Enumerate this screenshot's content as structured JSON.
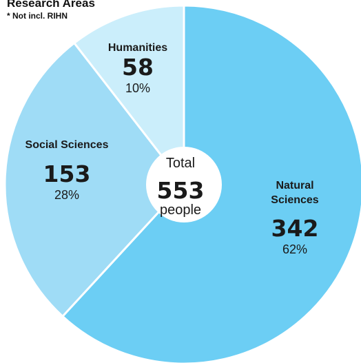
{
  "chart_data": {
    "type": "pie",
    "title": "Research Areas",
    "note": "* Not incl. RIHN",
    "center": {
      "label": "Total",
      "value": "553",
      "unit": "people"
    },
    "slices": [
      {
        "name": "Natural Sciences",
        "name_lines": [
          "Natural",
          "Sciences"
        ],
        "value": 342,
        "value_label": "342",
        "percent_label": "62%",
        "color": "#6ccef4"
      },
      {
        "name": "Social Sciences",
        "name_lines": [
          "Social Sciences"
        ],
        "value": 153,
        "value_label": "153",
        "percent_label": "28%",
        "color": "#9fdcf6"
      },
      {
        "name": "Humanities",
        "name_lines": [
          "Humanities"
        ],
        "value": 58,
        "value_label": "58",
        "percent_label": "10%",
        "color": "#cbeefb"
      }
    ]
  }
}
